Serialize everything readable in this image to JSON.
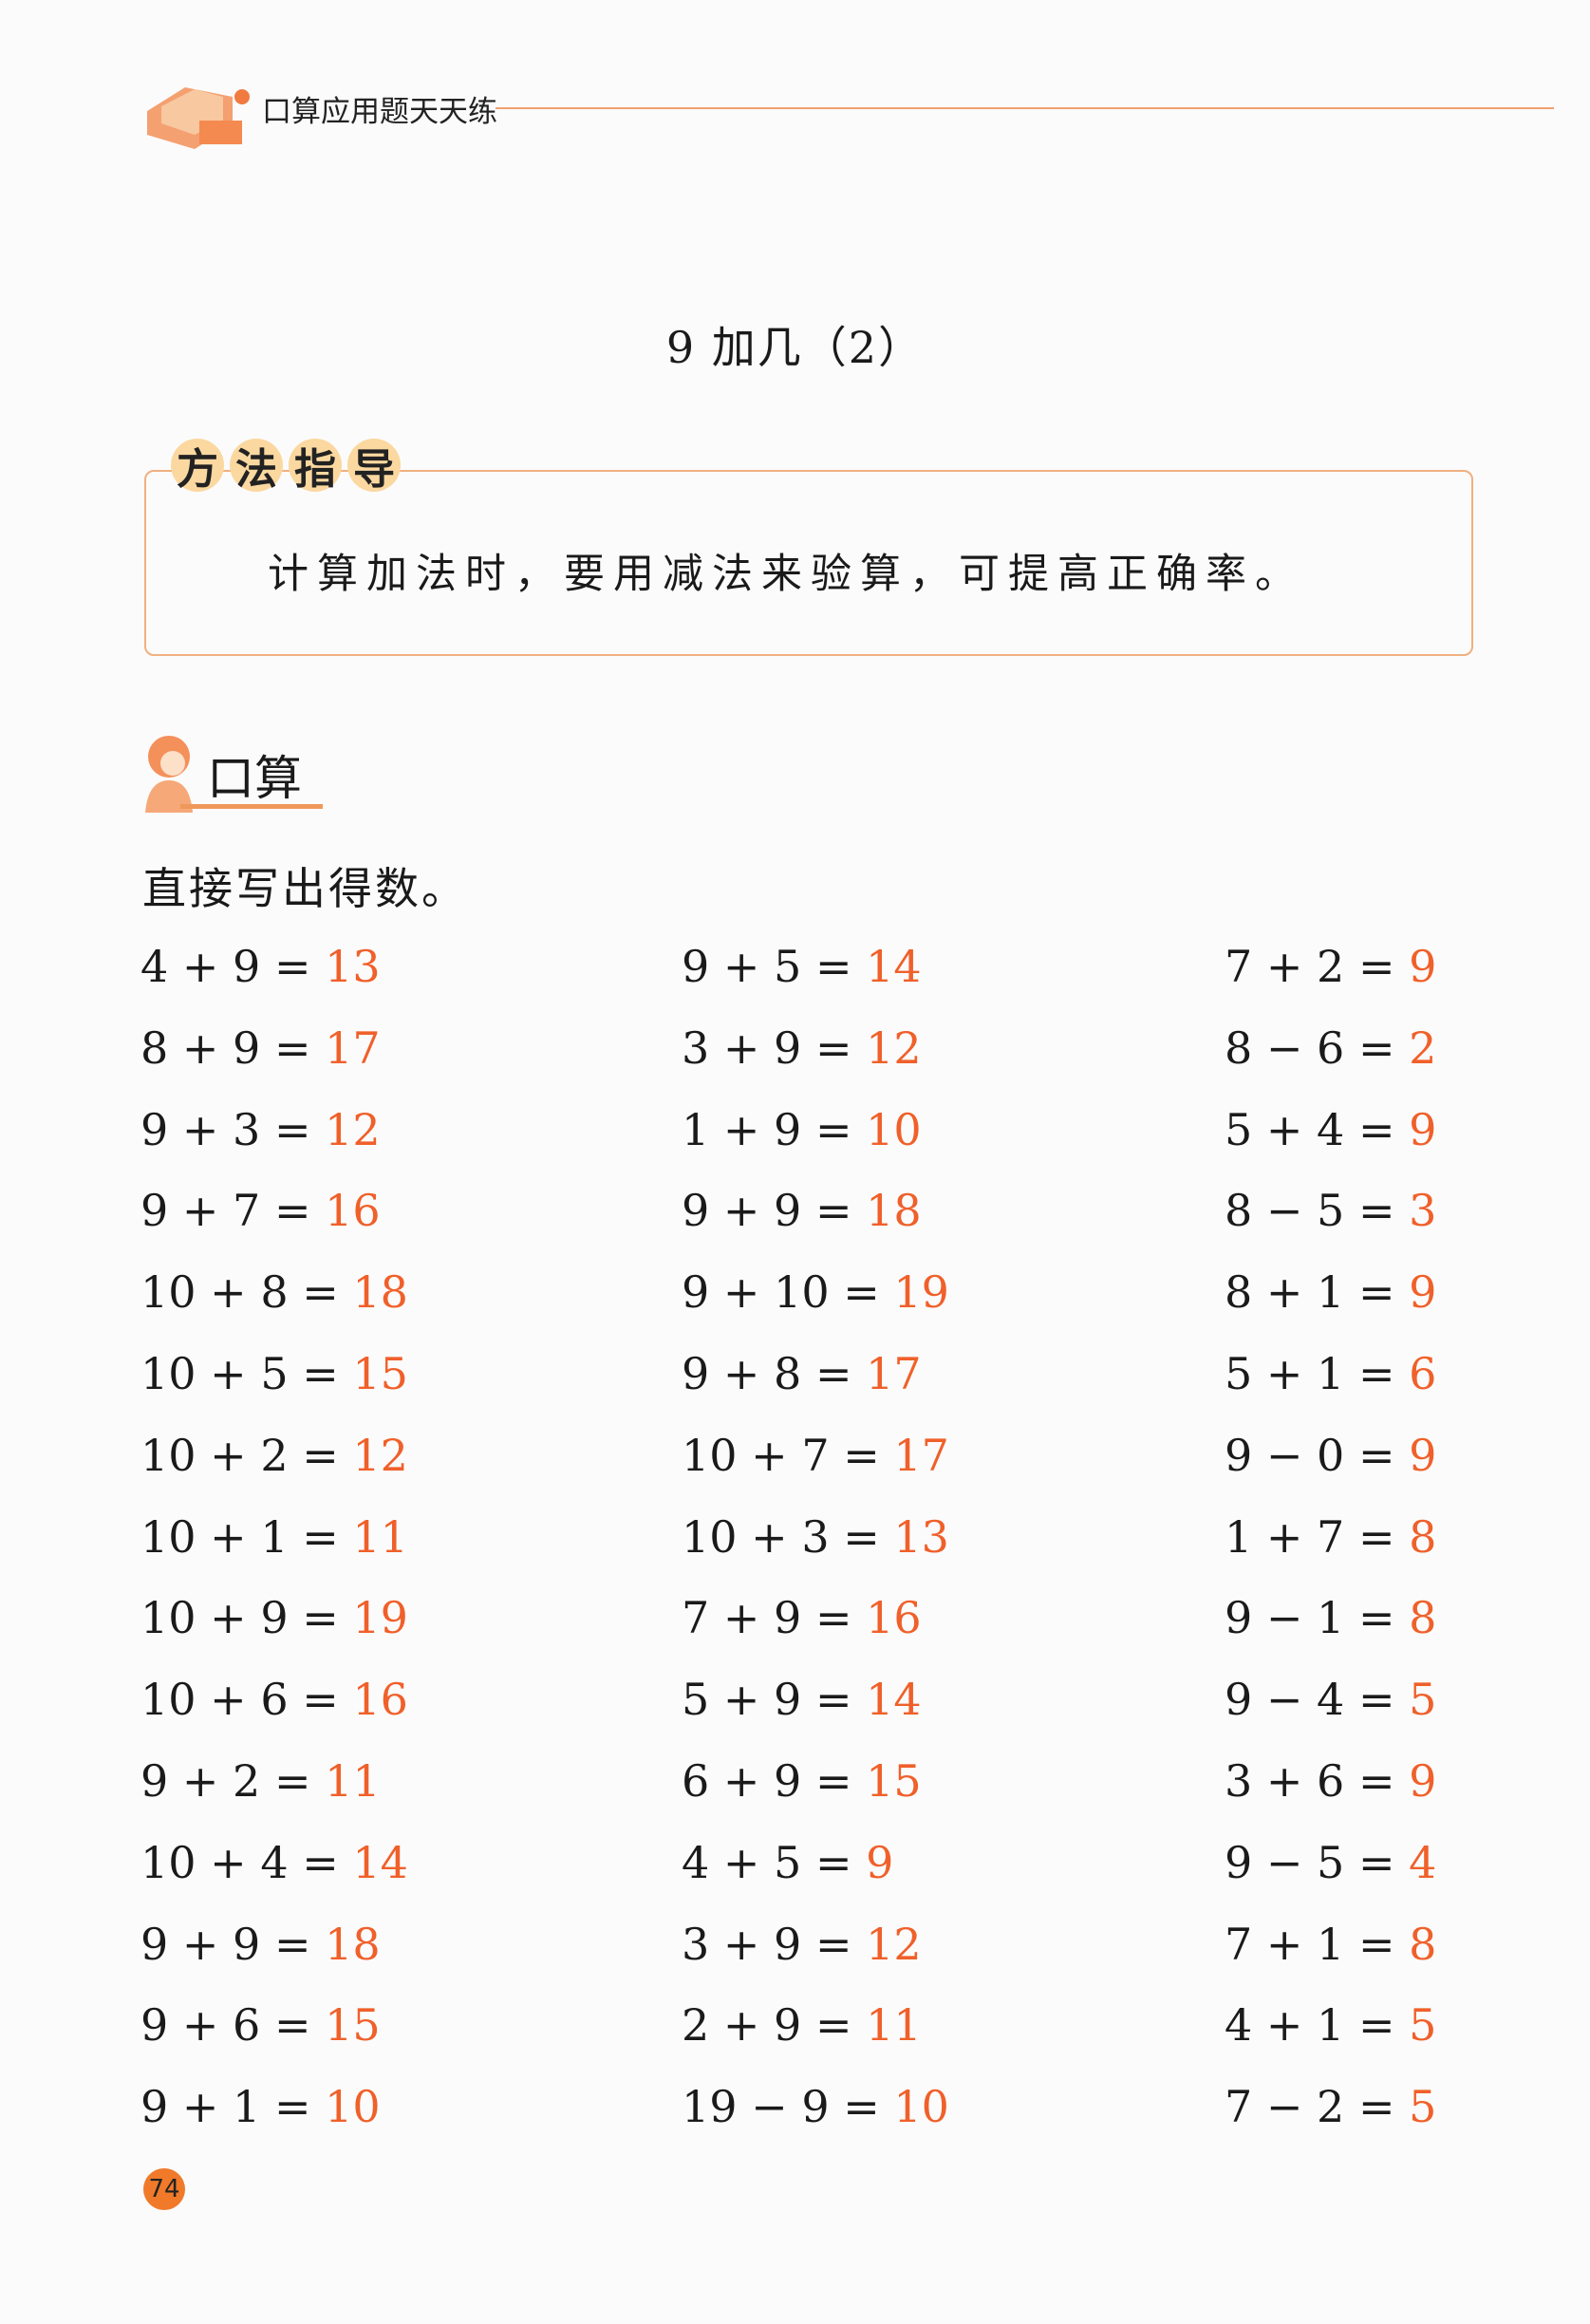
{
  "header": {
    "title": "口算应用题天天练"
  },
  "lesson_title": "9 加几（2）",
  "method": {
    "label": [
      "方",
      "法",
      "指",
      "导"
    ],
    "text": "计算加法时，要用减法来验算，可提高正确率。"
  },
  "oral": {
    "heading": "口算",
    "instruction": "直接写出得数。"
  },
  "columns": [
    [
      {
        "q": "4 + 9 = ",
        "a": "13"
      },
      {
        "q": "8 + 9 = ",
        "a": "17"
      },
      {
        "q": "9 + 3 = ",
        "a": "12"
      },
      {
        "q": "9 + 7 = ",
        "a": "16"
      },
      {
        "q": "10 + 8 = ",
        "a": "18"
      },
      {
        "q": "10 + 5 = ",
        "a": "15"
      },
      {
        "q": "10 + 2 = ",
        "a": "12"
      },
      {
        "q": "10 + 1 = ",
        "a": "11"
      },
      {
        "q": "10 + 9 = ",
        "a": "19"
      },
      {
        "q": "10 + 6 = ",
        "a": "16"
      },
      {
        "q": "9 + 2 = ",
        "a": "11"
      },
      {
        "q": "10 + 4 = ",
        "a": "14"
      },
      {
        "q": "9 + 9 = ",
        "a": "18"
      },
      {
        "q": "9 + 6 = ",
        "a": "15"
      },
      {
        "q": "9 + 1 = ",
        "a": "10"
      }
    ],
    [
      {
        "q": "9 + 5 = ",
        "a": "14"
      },
      {
        "q": "3 + 9 = ",
        "a": "12"
      },
      {
        "q": "1 + 9 = ",
        "a": "10"
      },
      {
        "q": "9 + 9 = ",
        "a": "18"
      },
      {
        "q": "9 + 10 = ",
        "a": "19"
      },
      {
        "q": "9 + 8 = ",
        "a": "17"
      },
      {
        "q": "10 + 7 = ",
        "a": "17"
      },
      {
        "q": "10 + 3 = ",
        "a": "13"
      },
      {
        "q": "7 + 9 = ",
        "a": "16"
      },
      {
        "q": "5 + 9 = ",
        "a": "14"
      },
      {
        "q": "6 + 9 = ",
        "a": "15"
      },
      {
        "q": "4 + 5 = ",
        "a": "9"
      },
      {
        "q": "3 + 9 = ",
        "a": "12"
      },
      {
        "q": "2 + 9 = ",
        "a": "11"
      },
      {
        "q": "19 − 9 = ",
        "a": "10"
      }
    ],
    [
      {
        "q": "7 + 2 = ",
        "a": "9"
      },
      {
        "q": "8 − 6 = ",
        "a": "2"
      },
      {
        "q": "5 + 4 = ",
        "a": "9"
      },
      {
        "q": "8 − 5 = ",
        "a": "3"
      },
      {
        "q": "8 + 1 = ",
        "a": "9"
      },
      {
        "q": "5 + 1 = ",
        "a": "6"
      },
      {
        "q": "9 − 0 = ",
        "a": "9"
      },
      {
        "q": "1 + 7 = ",
        "a": "8"
      },
      {
        "q": "9 − 1 = ",
        "a": "8"
      },
      {
        "q": "9 − 4 = ",
        "a": "5"
      },
      {
        "q": "3 + 6 = ",
        "a": "9"
      },
      {
        "q": "9 − 5 = ",
        "a": "4"
      },
      {
        "q": "7 + 1 = ",
        "a": "8"
      },
      {
        "q": "4 + 1 = ",
        "a": "5"
      },
      {
        "q": "7 − 2 = ",
        "a": "5"
      }
    ]
  ],
  "page_number": "74",
  "colors": {
    "answer": "#f0602a",
    "accent": "#f0985a"
  }
}
